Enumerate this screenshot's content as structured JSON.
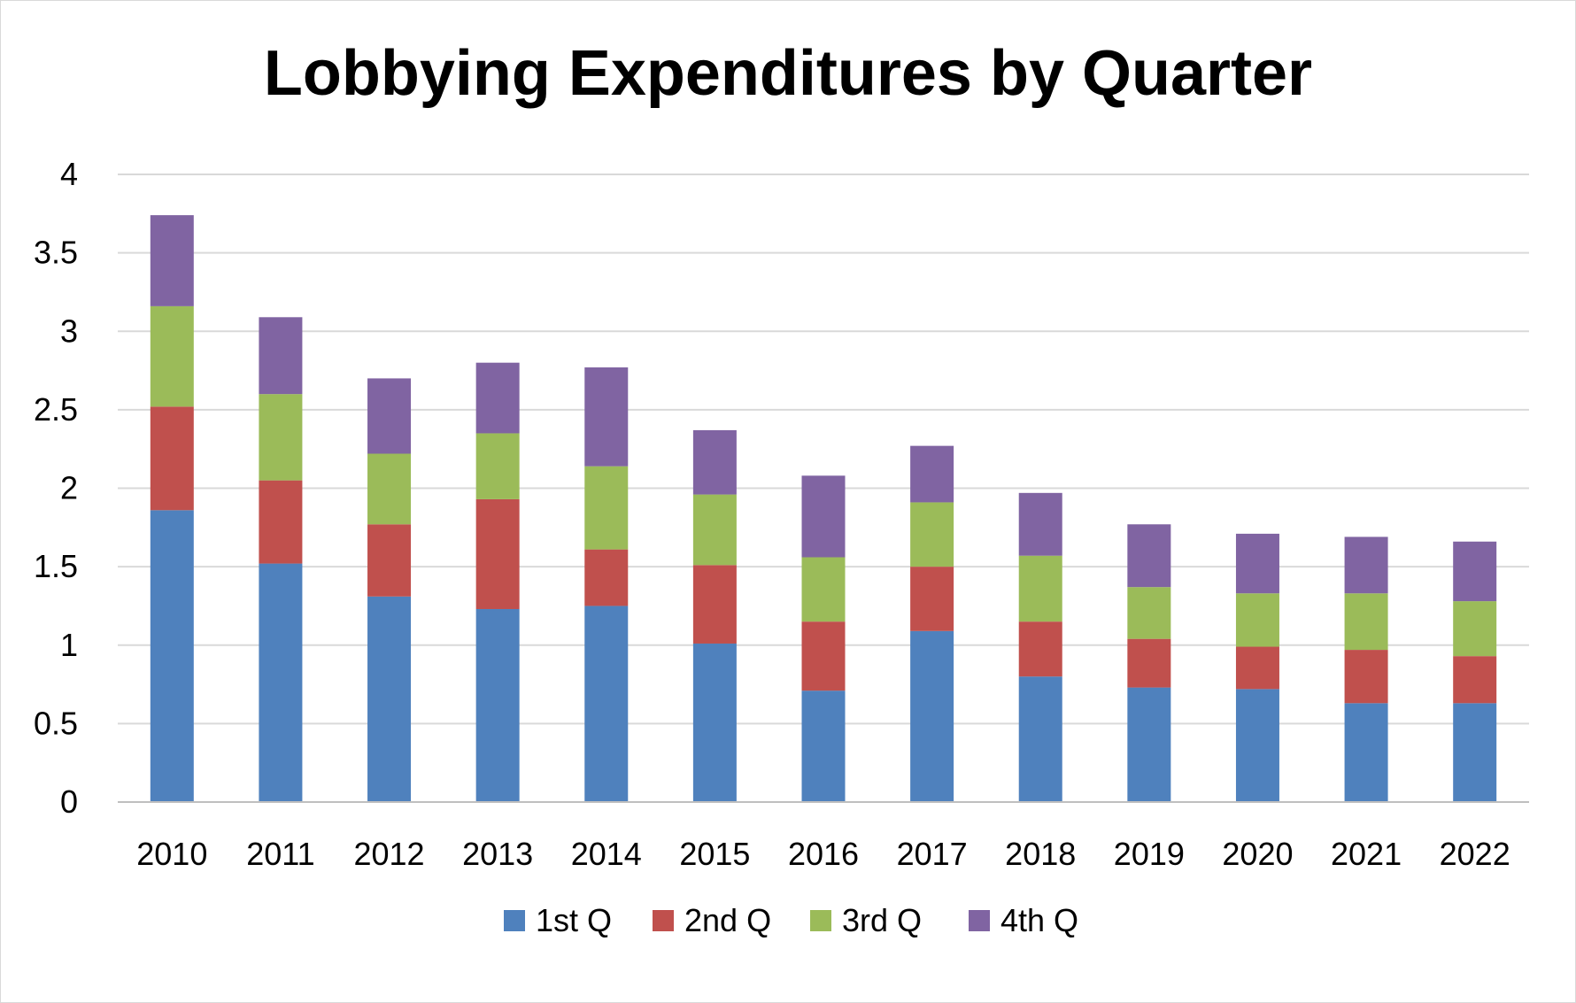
{
  "chart_data": {
    "type": "bar",
    "stacked": true,
    "title": "Lobbying Expenditures by Quarter",
    "xlabel": "",
    "ylabel": "",
    "ylim": [
      0,
      4
    ],
    "yticks": [
      "0",
      "0.5",
      "1",
      "1.5",
      "2",
      "2.5",
      "3",
      "3.5",
      "4"
    ],
    "grid": true,
    "legend_position": "bottom",
    "categories": [
      "2010",
      "2011",
      "2012",
      "2013",
      "2014",
      "2015",
      "2016",
      "2017",
      "2018",
      "2019",
      "2020",
      "2021",
      "2022"
    ],
    "series": [
      {
        "name": "1st Q",
        "color": "#4f81bd",
        "values": [
          1.86,
          1.52,
          1.31,
          1.23,
          1.25,
          1.01,
          0.71,
          1.09,
          0.8,
          0.73,
          0.72,
          0.63,
          0.63
        ]
      },
      {
        "name": "2nd Q",
        "color": "#c0504d",
        "values": [
          0.66,
          0.53,
          0.46,
          0.7,
          0.36,
          0.5,
          0.44,
          0.41,
          0.35,
          0.31,
          0.27,
          0.34,
          0.3
        ]
      },
      {
        "name": "3rd Q",
        "color": "#9bbb59",
        "values": [
          0.64,
          0.55,
          0.45,
          0.42,
          0.53,
          0.45,
          0.41,
          0.41,
          0.42,
          0.33,
          0.34,
          0.36,
          0.35
        ]
      },
      {
        "name": "4th Q",
        "color": "#8064a2",
        "values": [
          0.58,
          0.49,
          0.48,
          0.45,
          0.63,
          0.41,
          0.52,
          0.36,
          0.4,
          0.4,
          0.38,
          0.36,
          0.38
        ]
      }
    ]
  }
}
